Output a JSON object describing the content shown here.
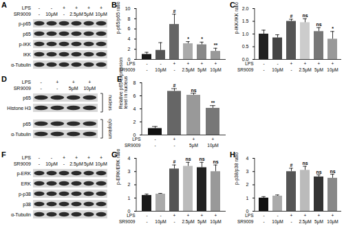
{
  "blots": [
    {
      "panel_label": "A",
      "conditions": [
        {
          "name": "LPS",
          "labels": [
            "-",
            "-",
            "+",
            "+",
            "+",
            "+"
          ]
        },
        {
          "name": "SR9009",
          "labels": [
            "-",
            "10μM",
            "-",
            "2.5μM",
            "5μM",
            "10μM"
          ]
        }
      ],
      "rows": [
        "p-p65",
        "p65",
        "p-IKK",
        "IKK",
        "α-Tubulin"
      ]
    },
    {
      "panel_label": "D",
      "conditions": [
        {
          "name": "LPS",
          "labels": [
            "-",
            "+",
            "+",
            "+"
          ]
        },
        {
          "name": "SR9009",
          "labels": [
            "-",
            "-",
            "5μM",
            "10μM"
          ]
        }
      ],
      "rows": [
        "p65",
        "Histone H3",
        "p65",
        "α-Tubulin"
      ],
      "groups": [
        {
          "name": "nucleus",
          "rows": [
            0,
            1
          ]
        },
        {
          "name": "cytoplasm",
          "rows": [
            2,
            3
          ]
        }
      ]
    },
    {
      "panel_label": "F",
      "conditions": [
        {
          "name": "LPS",
          "labels": [
            "-",
            "-",
            "+",
            "+",
            "+",
            "+"
          ]
        },
        {
          "name": "SR9009",
          "labels": [
            "-",
            "10μM",
            "-",
            "2.5μM",
            "5μM",
            "10μM"
          ]
        }
      ],
      "rows": [
        "p-ERK",
        "ERK",
        "p-p38",
        "p38",
        "α-Tubulin"
      ]
    }
  ],
  "chart_data": [
    {
      "panel_label": "B",
      "type": "bar",
      "ylabel": "p-p65/p65 ratio",
      "categories": [
        null,
        null,
        null,
        null,
        null,
        null
      ],
      "condition_rows": [
        {
          "name": "LPS",
          "labels": [
            "-",
            "-",
            "+",
            "+",
            "+",
            "+"
          ]
        },
        {
          "name": "SR9009",
          "labels": [
            "-",
            "10μM",
            "-",
            "2.5μM",
            "5μM",
            "10μM"
          ]
        }
      ],
      "values": [
        1.0,
        1.8,
        6.9,
        3.1,
        2.9,
        1.6
      ],
      "errors": [
        0.4,
        1.5,
        2.0,
        0.4,
        0.5,
        0.6
      ],
      "annotations": [
        null,
        null,
        "#",
        "*",
        "*",
        "**"
      ],
      "colors": [
        "#1a1a1a",
        "#555555",
        "#666666",
        "#aaaaaa",
        "#888888",
        "#999999"
      ],
      "ylim": [
        0,
        10
      ],
      "yticks": [
        0,
        2,
        4,
        6,
        8,
        10
      ]
    },
    {
      "panel_label": "C",
      "type": "bar",
      "ylabel": "p-IKK/IKK ratio",
      "categories": [
        null,
        null,
        null,
        null,
        null,
        null
      ],
      "condition_rows": [
        {
          "name": "LPS",
          "labels": [
            "-",
            "-",
            "+",
            "+",
            "+",
            "+"
          ]
        },
        {
          "name": "SR9009",
          "labels": [
            "-",
            "10μM",
            "-",
            "2.5μM",
            "5μM",
            "10μM"
          ]
        }
      ],
      "values": [
        1.0,
        0.85,
        1.5,
        1.45,
        1.1,
        0.8
      ],
      "errors": [
        0.15,
        0.12,
        0.08,
        0.15,
        0.15,
        0.3
      ],
      "annotations": [
        null,
        null,
        "#",
        "ns",
        "ns",
        "*"
      ],
      "colors": [
        "#222222",
        "#444444",
        "#555555",
        "#cccccc",
        "#777777",
        "#999999"
      ],
      "ylim": [
        0,
        2
      ],
      "yticks": [
        {
          "value": 0,
          "label": "0.0"
        },
        {
          "value": 0.5,
          "label": "0.5"
        },
        {
          "value": 1,
          "label": "1.0"
        },
        {
          "value": 1.5,
          "label": "1.5"
        },
        {
          "value": 2,
          "label": "2.0"
        }
      ]
    },
    {
      "panel_label": "E",
      "type": "bar",
      "ylabel": "Relative p65 expression level in nucleus",
      "categories": [
        null,
        null,
        null,
        null
      ],
      "condition_rows": [
        {
          "name": "LPS",
          "labels": [
            "-",
            "+",
            "+",
            "+"
          ]
        },
        {
          "name": "SR9009",
          "labels": [
            "-",
            "-",
            "5μM",
            "10μM"
          ]
        }
      ],
      "values": [
        1.0,
        6.7,
        6.1,
        4.1
      ],
      "errors": [
        0.3,
        0.4,
        0.3,
        0.4
      ],
      "annotations": [
        null,
        "#",
        "ns",
        "**"
      ],
      "colors": [
        "#111111",
        "#666666",
        "#999999",
        "#777777"
      ],
      "ylim": [
        0,
        8
      ],
      "yticks": [
        0,
        2,
        4,
        6,
        8
      ]
    },
    {
      "panel_label": "G",
      "type": "bar",
      "ylabel": "p-ERK/ERK ratio",
      "categories": [
        null,
        null,
        null,
        null,
        null,
        null
      ],
      "condition_rows": [
        {
          "name": "LPS",
          "labels": [
            "-",
            "-",
            "+",
            "+",
            "+",
            "+"
          ]
        },
        {
          "name": "SR9009",
          "labels": [
            "-",
            "10μM",
            "-",
            "2.5μM",
            "5μM",
            "10μM"
          ]
        }
      ],
      "values": [
        1.2,
        1.3,
        3.2,
        3.4,
        3.3,
        3.0
      ],
      "errors": [
        0.1,
        0.05,
        0.3,
        0.3,
        0.4,
        0.5
      ],
      "annotations": [
        null,
        null,
        "#",
        "ns",
        "ns",
        "ns"
      ],
      "colors": [
        "#1a1a1a",
        "#aaaaaa",
        "#555555",
        "#bbbbbb",
        "#222222",
        "#999999"
      ],
      "ylim": [
        0,
        4
      ],
      "yticks": [
        0,
        1,
        2,
        3,
        4
      ]
    },
    {
      "panel_label": "H",
      "type": "bar",
      "ylabel": "p-p38/p38 ratio",
      "categories": [
        null,
        null,
        null,
        null,
        null,
        null
      ],
      "condition_rows": [
        {
          "name": "LPS",
          "labels": [
            "-",
            "-",
            "+",
            "+",
            "+",
            "+"
          ]
        },
        {
          "name": "SR9009",
          "labels": [
            "-",
            "10μM",
            "-",
            "2.5μM",
            "5μM",
            "10μM"
          ]
        }
      ],
      "values": [
        1.0,
        1.15,
        3.0,
        3.1,
        2.6,
        2.5
      ],
      "errors": [
        0.1,
        0.08,
        0.25,
        0.3,
        0.15,
        0.3
      ],
      "annotations": [
        null,
        null,
        "#",
        "ns",
        "ns",
        "ns"
      ],
      "colors": [
        "#111111",
        "#aaaaaa",
        "#555555",
        "#bbbbbb",
        "#333333",
        "#888888"
      ],
      "ylim": [
        0,
        4
      ],
      "yticks": [
        0,
        1,
        2,
        3,
        4
      ]
    }
  ]
}
